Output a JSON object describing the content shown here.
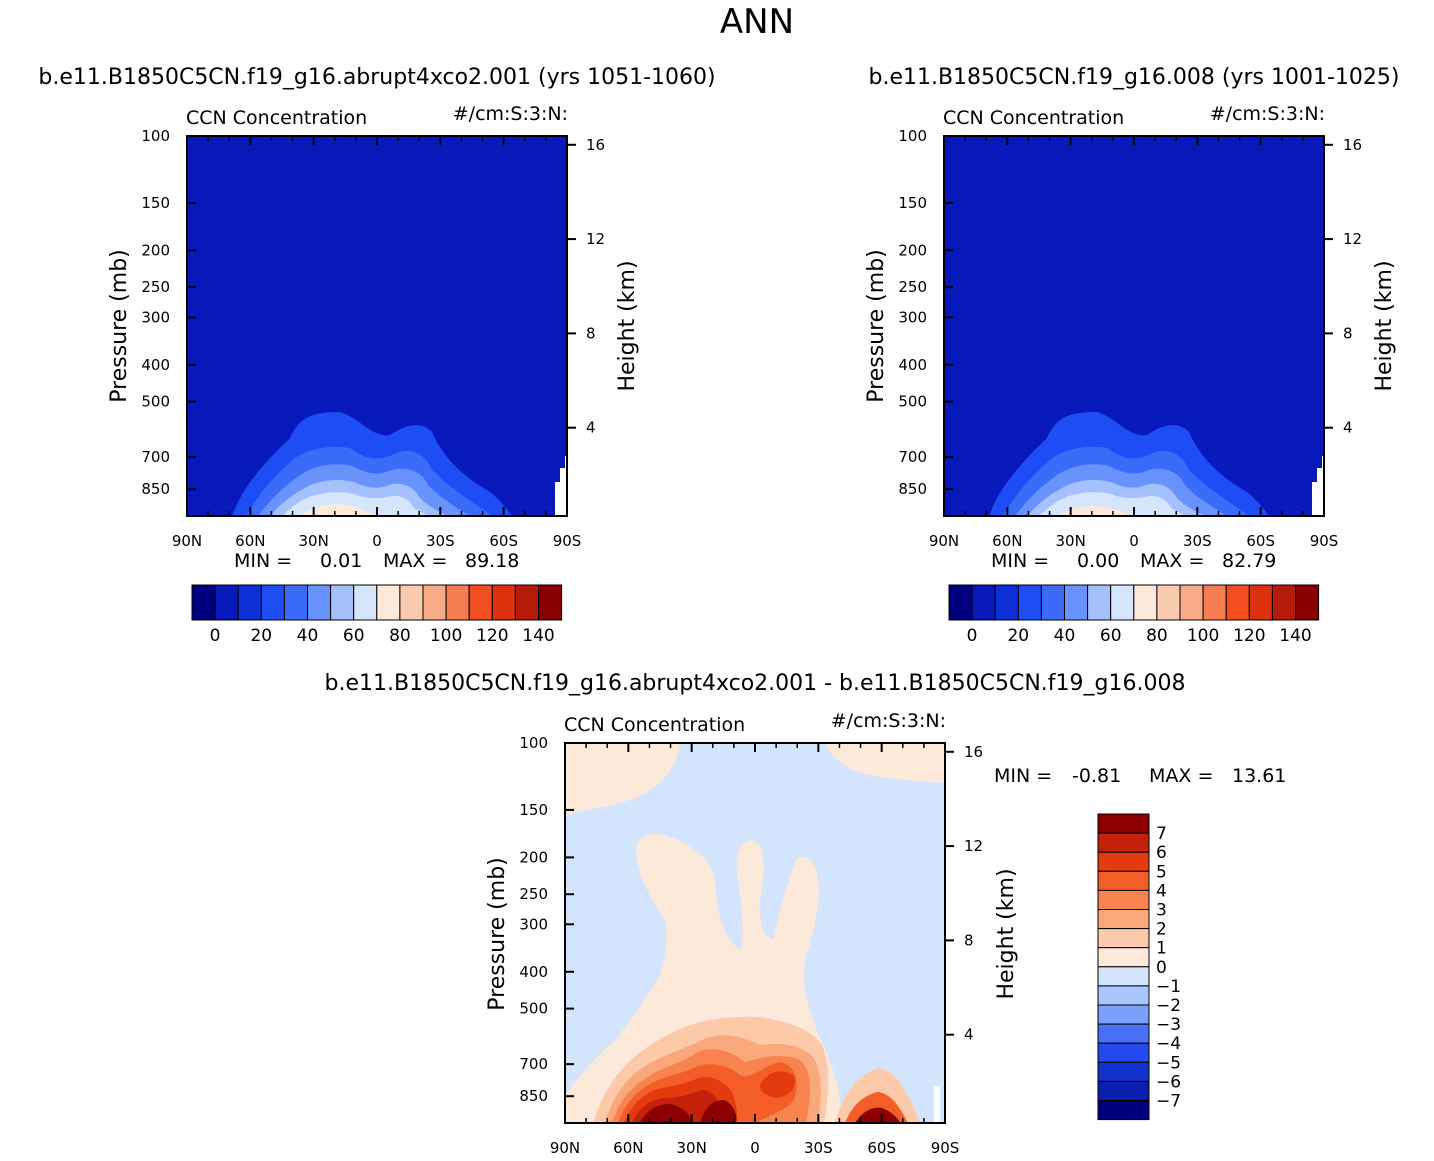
{
  "figure": {
    "title": "ANN"
  },
  "colors": {
    "abs_palette": [
      "#00007f",
      "#0719ba",
      "#0d2fd6",
      "#1e4cf5",
      "#3b6bf9",
      "#6892fc",
      "#a4c0fd",
      "#d5e6fc",
      "#fde9da",
      "#fbcbb0",
      "#f9aa86",
      "#f67d52",
      "#f24e1f",
      "#dc300e",
      "#b51b08",
      "#890000"
    ],
    "diff_palette": [
      "#00007f",
      "#0b1fae",
      "#1133cf",
      "#2449ee",
      "#4a70f7",
      "#7aa0fb",
      "#abc6fc",
      "#d2e5fd",
      "#fde9da",
      "#fcc9a9",
      "#faa77b",
      "#f8834f",
      "#f35d27",
      "#e43a0f",
      "#c52009",
      "#8c0000"
    ]
  },
  "chart_data": [
    {
      "type": "contour",
      "title": "b.e11.B1850C5CN.f19_g16.abrupt4xco2.001 (yrs 1051-1060)",
      "variable": "CCN Concentration",
      "units": "#/cm:S:3:N:",
      "xlabel": "",
      "ylabel": "Pressure (mb)",
      "y2label": "Height (km)",
      "x_ticks": [
        "90N",
        "60N",
        "30N",
        "0",
        "30S",
        "60S",
        "90S"
      ],
      "y_ticks": [
        "100",
        "150",
        "200",
        "250",
        "300",
        "400",
        "500",
        "700",
        "850"
      ],
      "y2_ticks": [
        "16",
        "12",
        "8",
        "4"
      ],
      "min_label": "MIN =",
      "min": "0.01",
      "max_label": "MAX =",
      "max": "89.18",
      "colorbar_labels": [
        "0",
        "20",
        "40",
        "60",
        "80",
        "100",
        "120",
        "140"
      ],
      "contour_levels_mb_by_lat": {
        "lat": [
          70,
          55,
          40,
          25,
          10,
          0,
          -15,
          -30,
          -45,
          -60,
          -70
        ],
        "level_10": [
          870,
          660,
          540,
          510,
          540,
          560,
          540,
          560,
          680,
          830,
          900
        ]
      }
    },
    {
      "type": "contour",
      "title": "b.e11.B1850C5CN.f19_g16.008 (yrs 1001-1025)",
      "variable": "CCN Concentration",
      "units": "#/cm:S:3:N:",
      "xlabel": "",
      "ylabel": "Pressure (mb)",
      "y2label": "Height (km)",
      "x_ticks": [
        "90N",
        "60N",
        "30N",
        "0",
        "30S",
        "60S",
        "90S"
      ],
      "y_ticks": [
        "100",
        "150",
        "200",
        "250",
        "300",
        "400",
        "500",
        "700",
        "850"
      ],
      "y2_ticks": [
        "16",
        "12",
        "8",
        "4"
      ],
      "min_label": "MIN =",
      "min": "0.00",
      "max_label": "MAX =",
      "max": "82.79",
      "colorbar_labels": [
        "0",
        "20",
        "40",
        "60",
        "80",
        "100",
        "120",
        "140"
      ]
    },
    {
      "type": "contour",
      "title": "b.e11.B1850C5CN.f19_g16.abrupt4xco2.001 - b.e11.B1850C5CN.f19_g16.008",
      "variable": "CCN Concentration",
      "units": "#/cm:S:3:N:",
      "xlabel": "",
      "ylabel": "Pressure (mb)",
      "y2label": "Height (km)",
      "x_ticks": [
        "90N",
        "60N",
        "30N",
        "0",
        "30S",
        "60S",
        "90S"
      ],
      "y_ticks": [
        "100",
        "150",
        "200",
        "250",
        "300",
        "400",
        "500",
        "700",
        "850"
      ],
      "y2_ticks": [
        "16",
        "12",
        "8",
        "4"
      ],
      "min_label": "MIN =",
      "min": "-0.81",
      "max_label": "MAX =",
      "max": "13.61",
      "colorbar_labels": [
        "7",
        "6",
        "5",
        "4",
        "3",
        "2",
        "1",
        "0",
        "−1",
        "−2",
        "−3",
        "−4",
        "−5",
        "−6",
        "−7"
      ]
    }
  ]
}
